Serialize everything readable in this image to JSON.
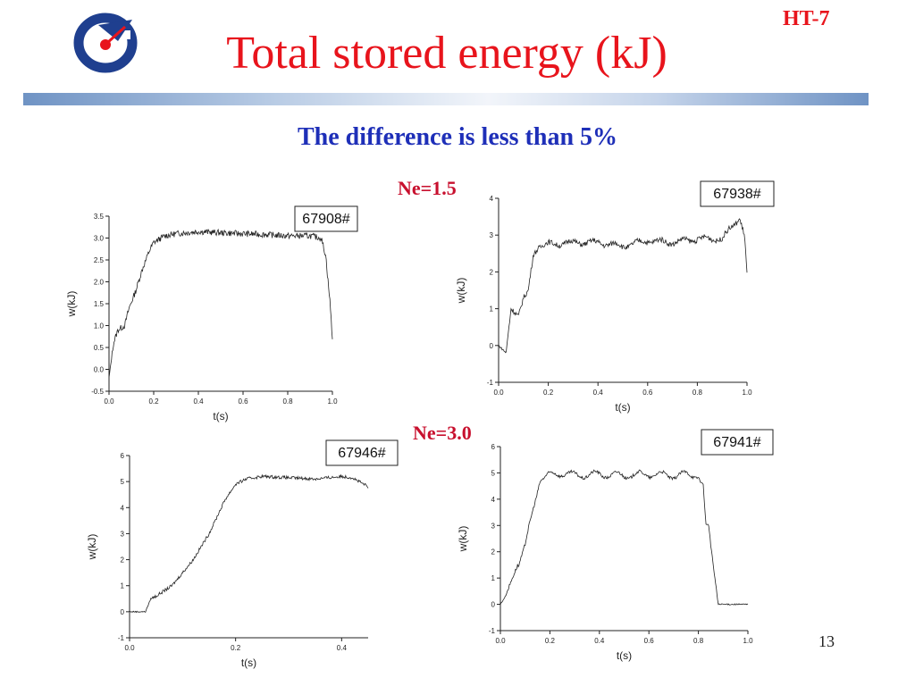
{
  "header": {
    "title": "Total stored energy  (kJ)",
    "tag": "HT-7",
    "subtitle": "The difference is less than 5%",
    "page_number": "13"
  },
  "groups": [
    {
      "label": "Ne=1.5"
    },
    {
      "label": "Ne=3.0"
    }
  ],
  "colors": {
    "title": "#e8141c",
    "subtitle": "#1e2fb8",
    "group_label": "#c8102e",
    "trace": "#222222",
    "band_dark": "#6f93c4",
    "band_light": "#f2f5fa"
  },
  "chart_data": [
    {
      "type": "line",
      "shot": "67908#",
      "xlabel": "t(s)",
      "ylabel": "w(kJ)",
      "xlim": [
        0.0,
        1.0
      ],
      "ylim": [
        -0.5,
        3.5
      ],
      "xticks": [
        "0.0",
        "0.2",
        "0.4",
        "0.6",
        "0.8",
        "1.0"
      ],
      "yticks": [
        "-0.5",
        "0.0",
        "0.5",
        "1.0",
        "1.5",
        "2.0",
        "2.5",
        "3.0",
        "3.5"
      ],
      "noise": 0.07,
      "ripple": 0.0,
      "series": [
        {
          "x": [
            0.0,
            0.02,
            0.04,
            0.07,
            0.09,
            0.12,
            0.15,
            0.18,
            0.2,
            0.25,
            0.3,
            0.4,
            0.5,
            0.6,
            0.7,
            0.8,
            0.9,
            0.95,
            0.97,
            0.99,
            1.0
          ],
          "y": [
            -0.2,
            0.6,
            0.9,
            1.0,
            1.4,
            1.8,
            2.3,
            2.7,
            2.9,
            3.05,
            3.1,
            3.15,
            3.12,
            3.1,
            3.08,
            3.05,
            3.05,
            3.0,
            2.6,
            1.5,
            0.7
          ]
        }
      ]
    },
    {
      "type": "line",
      "shot": "67938#",
      "xlabel": "t(s)",
      "ylabel": "w(kJ)",
      "xlim": [
        0.0,
        1.0
      ],
      "ylim": [
        -1,
        4
      ],
      "xticks": [
        "0.0",
        "0.2",
        "0.4",
        "0.6",
        "0.8",
        "1.0"
      ],
      "yticks": [
        "-1",
        "0",
        "1",
        "2",
        "3",
        "4"
      ],
      "noise": 0.07,
      "ripple": 0.12,
      "series": [
        {
          "x": [
            0.0,
            0.03,
            0.05,
            0.08,
            0.1,
            0.12,
            0.14,
            0.16,
            0.2,
            0.3,
            0.4,
            0.5,
            0.6,
            0.7,
            0.8,
            0.9,
            0.95,
            0.97,
            0.99,
            1.0
          ],
          "y": [
            0.0,
            -0.2,
            1.0,
            0.8,
            1.3,
            1.5,
            2.5,
            2.7,
            2.75,
            2.8,
            2.8,
            2.7,
            2.85,
            2.8,
            2.9,
            2.9,
            3.3,
            3.5,
            3.0,
            1.9
          ]
        }
      ]
    },
    {
      "type": "line",
      "shot": "67946#",
      "xlabel": "t(s)",
      "ylabel": "w(kJ)",
      "xlim": [
        0.0,
        0.45
      ],
      "ylim": [
        -1,
        6
      ],
      "xticks": [
        "0.0",
        "0.2",
        "0.4"
      ],
      "yticks": [
        "-1",
        "0",
        "1",
        "2",
        "3",
        "4",
        "5",
        "6"
      ],
      "noise": 0.06,
      "ripple": 0.0,
      "series": [
        {
          "x": [
            0.0,
            0.03,
            0.04,
            0.05,
            0.08,
            0.1,
            0.12,
            0.15,
            0.18,
            0.2,
            0.22,
            0.25,
            0.3,
            0.35,
            0.4,
            0.42,
            0.45
          ],
          "y": [
            0.0,
            0.0,
            0.5,
            0.6,
            1.0,
            1.5,
            2.0,
            3.0,
            4.3,
            4.9,
            5.1,
            5.2,
            5.15,
            5.1,
            5.2,
            5.15,
            4.8
          ]
        }
      ]
    },
    {
      "type": "line",
      "shot": "67941#",
      "xlabel": "t(s)",
      "ylabel": "w(kJ)",
      "xlim": [
        0.0,
        1.0
      ],
      "ylim": [
        -1,
        6
      ],
      "xticks": [
        "0.0",
        "0.2",
        "0.4",
        "0.6",
        "0.8",
        "1.0"
      ],
      "yticks": [
        "-1",
        "0",
        "1",
        "2",
        "3",
        "4",
        "5",
        "6"
      ],
      "noise": 0.06,
      "ripple": 0.25,
      "series": [
        {
          "x": [
            0.0,
            0.02,
            0.04,
            0.07,
            0.1,
            0.13,
            0.16,
            0.2,
            0.25,
            0.3,
            0.4,
            0.5,
            0.6,
            0.7,
            0.78,
            0.8,
            0.82,
            0.83,
            0.84,
            0.86,
            0.88,
            1.0
          ],
          "y": [
            0.0,
            0.3,
            0.8,
            1.5,
            2.2,
            3.5,
            4.8,
            4.9,
            5.0,
            4.9,
            4.95,
            4.9,
            4.95,
            4.9,
            4.95,
            4.9,
            4.4,
            2.9,
            3.0,
            1.5,
            0.0,
            0.0
          ]
        }
      ]
    }
  ]
}
